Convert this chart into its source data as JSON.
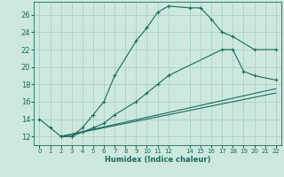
{
  "xlabel": "Humidex (Indice chaleur)",
  "bg_color": "#cce8df",
  "grid_color": "#b0d4ca",
  "line_color": "#1a6b5a",
  "xlim": [
    -0.5,
    22.5
  ],
  "ylim": [
    11,
    27.5
  ],
  "xticks": [
    0,
    1,
    2,
    3,
    4,
    5,
    6,
    7,
    8,
    9,
    10,
    11,
    12,
    14,
    15,
    16,
    17,
    18,
    19,
    20,
    21,
    22
  ],
  "yticks": [
    12,
    14,
    16,
    18,
    20,
    22,
    24,
    26
  ],
  "series": [
    {
      "x": [
        0,
        1,
        2,
        3,
        4,
        5,
        6,
        7,
        9,
        10,
        11,
        12,
        14,
        15,
        16,
        17,
        18,
        20,
        22
      ],
      "y": [
        14,
        13,
        12,
        12,
        13,
        14.5,
        16,
        19,
        23,
        24.5,
        26.3,
        27,
        26.8,
        26.8,
        25.5,
        24,
        23.5,
        22,
        22
      ],
      "style": "-",
      "marker": "+"
    },
    {
      "x": [
        2,
        3,
        4,
        5,
        6,
        7,
        9,
        10,
        11,
        12,
        17,
        18,
        19,
        20,
        22
      ],
      "y": [
        12,
        12,
        12.5,
        13,
        13.5,
        14.5,
        16,
        17,
        18,
        19,
        22,
        22,
        19.5,
        19,
        18.5
      ],
      "style": "-",
      "marker": "+"
    },
    {
      "x": [
        2,
        22
      ],
      "y": [
        12,
        17.5
      ],
      "style": "-",
      "marker": null
    },
    {
      "x": [
        2,
        22
      ],
      "y": [
        12,
        17
      ],
      "style": "-",
      "marker": null
    }
  ]
}
